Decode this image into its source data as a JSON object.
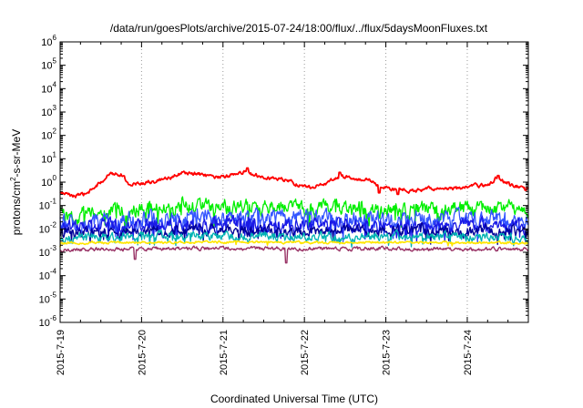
{
  "chart_data": {
    "type": "line",
    "title": "/data/run/goesPlots/archive/2015-07-24/18:00/flux/../flux/5daysMoonFluxes.txt",
    "xlabel": "Coordinated Universal Time (UTC)",
    "ylabel_parts": [
      "protons/cm",
      "2",
      "-s-sr-MeV"
    ],
    "x_tick_labels": [
      "2015-7-19",
      "2015-7-20",
      "2015-7-21",
      "2015-7-22",
      "2015-7-23",
      "2015-7-24"
    ],
    "x_range": [
      "2015-07-19",
      "2015-07-24 18:00"
    ],
    "y_scale": "log",
    "y_range": [
      1e-06,
      1000000.0
    ],
    "y_tick_labels": [
      {
        "base": "10",
        "exp": "-6"
      },
      {
        "base": "10",
        "exp": "-5"
      },
      {
        "base": "10",
        "exp": "-4"
      },
      {
        "base": "10",
        "exp": "-3"
      },
      {
        "base": "10",
        "exp": "-2"
      },
      {
        "base": "10",
        "exp": "-1"
      },
      {
        "base": "10",
        "exp": "0"
      },
      {
        "base": "10",
        "exp": "1"
      },
      {
        "base": "10",
        "exp": "2"
      },
      {
        "base": "10",
        "exp": "3"
      },
      {
        "base": "10",
        "exp": "4"
      },
      {
        "base": "10",
        "exp": "5"
      },
      {
        "base": "10",
        "exp": "6"
      }
    ],
    "grid": "dotted at x ticks",
    "legend": "none",
    "series": [
      {
        "color": "#ff0000",
        "anchors": [
          [
            0,
            0.35
          ],
          [
            0.2,
            0.25
          ],
          [
            0.35,
            0.35
          ],
          [
            0.5,
            1.0
          ],
          [
            0.62,
            2.5
          ],
          [
            0.75,
            2.2
          ],
          [
            0.85,
            0.8
          ],
          [
            1.0,
            0.9
          ],
          [
            1.2,
            1.1
          ],
          [
            1.35,
            1.5
          ],
          [
            1.5,
            2.5
          ],
          [
            1.7,
            2.2
          ],
          [
            1.9,
            1.5
          ],
          [
            2.05,
            1.8
          ],
          [
            2.25,
            2.8
          ],
          [
            2.4,
            2.0
          ],
          [
            2.6,
            1.5
          ],
          [
            2.8,
            1.2
          ],
          [
            2.95,
            0.7
          ],
          [
            3.1,
            0.6
          ],
          [
            3.3,
            1.0
          ],
          [
            3.45,
            2.0
          ],
          [
            3.6,
            1.3
          ],
          [
            3.8,
            1.3
          ],
          [
            3.9,
            0.7
          ],
          [
            4.0,
            0.55
          ],
          [
            4.2,
            0.45
          ],
          [
            4.35,
            0.4
          ],
          [
            4.55,
            0.55
          ],
          [
            4.75,
            0.5
          ],
          [
            4.9,
            0.55
          ],
          [
            5.1,
            0.7
          ],
          [
            5.25,
            0.75
          ],
          [
            5.35,
            1.5
          ],
          [
            5.5,
            0.9
          ],
          [
            5.6,
            0.7
          ],
          [
            5.75,
            0.55
          ]
        ],
        "jitter": 0.12,
        "spikes": [
          [
            2.3,
            4.0
          ],
          [
            3.43,
            2.6
          ],
          [
            3.92,
            0.35
          ],
          [
            4.15,
            0.3
          ],
          [
            5.38,
            1.9
          ],
          [
            5.5,
            1.0
          ],
          [
            5.72,
            0.45
          ]
        ],
        "width": 1.8
      },
      {
        "color": "#00ee00",
        "anchors": [
          [
            0,
            0.04
          ],
          [
            0.2,
            0.035
          ],
          [
            0.5,
            0.06
          ],
          [
            1.0,
            0.07
          ],
          [
            1.5,
            0.08
          ],
          [
            2.0,
            0.09
          ],
          [
            2.5,
            0.08
          ],
          [
            3.0,
            0.07
          ],
          [
            3.5,
            0.08
          ],
          [
            4.0,
            0.06
          ],
          [
            4.5,
            0.07
          ],
          [
            5.0,
            0.07
          ],
          [
            5.5,
            0.07
          ],
          [
            5.75,
            0.06
          ]
        ],
        "jitter": 0.5,
        "dips": 0.35,
        "dipFactor": 0.25,
        "width": 1.3
      },
      {
        "color": "#3355ff",
        "anchors": [
          [
            0,
            0.018
          ],
          [
            1.0,
            0.025
          ],
          [
            2.0,
            0.03
          ],
          [
            3.0,
            0.028
          ],
          [
            4.0,
            0.025
          ],
          [
            5.0,
            0.025
          ],
          [
            5.75,
            0.022
          ]
        ],
        "jitter": 0.55,
        "dips": 0.4,
        "dipFactor": 0.2,
        "width": 1.3
      },
      {
        "color": "#1a1ae6",
        "anchors": [
          [
            0,
            0.012
          ],
          [
            1.0,
            0.014
          ],
          [
            2.0,
            0.016
          ],
          [
            3.0,
            0.015
          ],
          [
            4.0,
            0.014
          ],
          [
            5.0,
            0.014
          ],
          [
            5.75,
            0.013
          ]
        ],
        "jitter": 0.45,
        "dips": 0.35,
        "dipFactor": 0.3,
        "width": 1.3
      },
      {
        "color": "#000099",
        "anchors": [
          [
            0,
            0.007
          ],
          [
            1.0,
            0.008
          ],
          [
            2.0,
            0.009
          ],
          [
            3.0,
            0.008
          ],
          [
            4.0,
            0.008
          ],
          [
            5.0,
            0.008
          ],
          [
            5.75,
            0.007
          ]
        ],
        "jitter": 0.35,
        "dips": 0.3,
        "dipFactor": 0.45,
        "width": 1.3
      },
      {
        "color": "#00b3b3",
        "anchors": [
          [
            0,
            0.004
          ],
          [
            1.0,
            0.0045
          ],
          [
            2.0,
            0.005
          ],
          [
            3.0,
            0.0045
          ],
          [
            4.0,
            0.0045
          ],
          [
            5.0,
            0.0045
          ],
          [
            5.75,
            0.004
          ]
        ],
        "jitter": 0.3,
        "dips": 0.25,
        "dipFactor": 0.55,
        "width": 1.3
      },
      {
        "color": "#ffe600",
        "anchors": [
          [
            0,
            0.0025
          ],
          [
            1.0,
            0.0026
          ],
          [
            2.0,
            0.0027
          ],
          [
            3.0,
            0.0026
          ],
          [
            4.0,
            0.0026
          ],
          [
            5.0,
            0.0026
          ],
          [
            5.75,
            0.0025
          ]
        ],
        "jitter": 0.08,
        "dips": 0.08,
        "dipFactor": 0.7,
        "width": 1.6
      },
      {
        "color": "#993366",
        "anchors": [
          [
            0,
            0.0013
          ],
          [
            1.0,
            0.0014
          ],
          [
            2.0,
            0.0015
          ],
          [
            3.0,
            0.0014
          ],
          [
            4.0,
            0.0014
          ],
          [
            5.0,
            0.0014
          ],
          [
            5.75,
            0.0013
          ]
        ],
        "jitter": 0.12,
        "spikes": [
          [
            0.92,
            0.0005
          ],
          [
            2.78,
            0.00035
          ]
        ],
        "width": 1.4
      }
    ]
  }
}
